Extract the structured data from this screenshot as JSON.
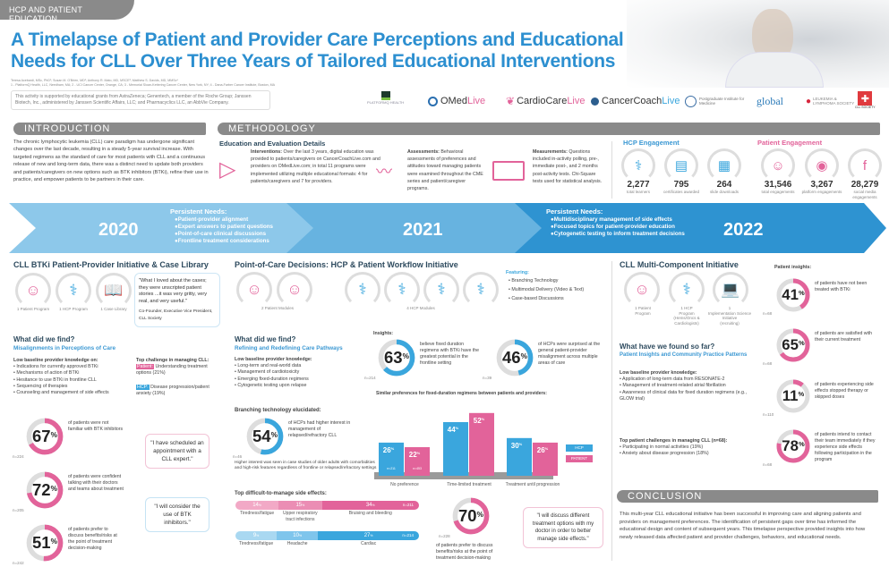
{
  "header": {
    "tag": "HCP AND PATIENT EDUCATION",
    "title": "A Timelapse of Patient and Provider Care Perceptions and Educational Needs for CLL Over Three Years of Tailored Educational Interventions",
    "authors": "Teresa Acebardi, MSc, PhD¹; Susan M. O'Brien, MD²; Anthony R. Mato, MD, MSCE³; Matthew S. Davids, MD, MMSc⁴",
    "affiliations": "1 - PlatformQ Health, LLC, Needham, MA; 2 - UCI Cancer Center, Orange, CA; 3 - Memorial Sloan-Kettering Cancer Center, New York, NY; 4 - Dana-Farber Cancer Institute, Boston, MA",
    "support": "This activity is supported by educational grants from AstraZeneca; Genentech, a member of the Roche Group; Janssen Biotech, Inc., administered by Janssen Scientific Affairs, LLC; and Pharmacyclics LLC, an AbbVie Company."
  },
  "logos": {
    "platformq": "PLATFORMQ HEALTH",
    "omed_a": "OMed",
    "omed_b": "Live",
    "cardio_a": "CardioCare",
    "cardio_b": "Live",
    "coach_a": "CancerCoach",
    "coach_b": "Live",
    "pim": "Postgraduate Institute for Medicine",
    "global": "global",
    "lls": "LEUKEMIA & LYMPHOMA SOCIETY",
    "cll": "CLL SOCIETY"
  },
  "colors": {
    "pink": "#e2639a",
    "blue": "#3aa6dd",
    "title_blue": "#2c8fd0",
    "section_gray": "#8a8a8a"
  },
  "intro": {
    "heading": "INTRODUCTION",
    "text": "The chronic lymphocytic leukemia (CLL) care paradigm has undergone significant changes over the last decade, resulting in a steady 5-year survival increase. With targeted regimens as the standard of care for most patients with CLL and a continuous release of new and long-term data, there was a distinct need to update both providers and patients/caregivers on new options such as BTK inhibitors (BTKi), refine their use in practice, and empower patients to be partners in their care."
  },
  "methodology": {
    "heading": "METHODOLOGY",
    "subheading": "Education and Evaluation Details",
    "interventions_label": "Interventions:",
    "interventions": " Over the last 3 years, digital education was provided to patients/caregivers on CancerCoachLive.com and providers on OMedLive.com; in total 11 programs were implemented utilizing multiple educational formats: 4 for patients/caregivers and 7 for providers.",
    "assessments_label": "Assessments:",
    "assessments": " Behavioral assessments of preferences and attitudes toward managing patients were examined throughout the CME series and patient/caregiver programs.",
    "measurements_label": "Measurements:",
    "measurements": " Questions included in-activity polling, pre-, immediate post-, and 2 months post-activity tests. Chi-Square tests used for statistical analysis."
  },
  "engagement": {
    "hcp_heading": "HCP Engagement",
    "patient_heading": "Patient Engagement",
    "hcp": [
      {
        "value": "2,277",
        "label": "total learners",
        "icon": "doctor-icon"
      },
      {
        "value": "795",
        "label": "certificates awarded",
        "icon": "certificate-icon"
      },
      {
        "value": "264",
        "label": "slide downloads",
        "icon": "presentation-icon"
      }
    ],
    "patient": [
      {
        "value": "31,546",
        "label": "total engagements",
        "icon": "person-icon"
      },
      {
        "value": "3,267",
        "label": "platform engagements",
        "icon": "megaphone-icon"
      },
      {
        "value": "28,279",
        "label": "social media engagements",
        "icon": "facebook-laptop-icon"
      }
    ]
  },
  "timeline": {
    "y2020": "2020",
    "y2021": "2021",
    "y2022": "2022",
    "needs_2020_title": "Persistent Needs:",
    "needs_2020": [
      "●Patient-provider alignment",
      "●Expert answers to patient questions",
      "●Point-of-care clinical discussions",
      "●Frontline treatment considerations"
    ],
    "needs_2022_title": "Persistent Needs:",
    "needs_2022": [
      "●Multidisciplinary management of side effects",
      "●Focused topics for patient-provider education",
      "●Cytogenetic testing to inform treatment decisions"
    ]
  },
  "s2020": {
    "title": "CLL BTKi Patient-Provider Initiative & Case Library",
    "programs": [
      "1 Patient Program",
      "1 HCP Program",
      "1 Case Library"
    ],
    "quote": "\"What I loved about the cases; they were unscripted patient stories ...it was very gritty, very real, and very useful.\"",
    "quote_attr": "Co-Founder, Executive Vice President, CLL Society",
    "find": "What did we find?",
    "find_sub": "Misalignments in Perceptions of Care",
    "low_title": "Low baseline provider knowledge on:",
    "low": [
      "Indications for currently approved BTKi",
      "Mechanisms of action of BTKi",
      "Hesitance to use BTKi in frontline CLL",
      "Sequencing of therapies",
      "Counseling and management of side effects"
    ],
    "challenge_title": "Top challenge in managing CLL:",
    "patient_badge": "Patient:",
    "patient_challenge": " Understanding treatment options (21%)",
    "hcp_badge": "HCP:",
    "hcp_challenge": " Disease progression/patient anxiety (19%)",
    "stats": [
      {
        "value": 67,
        "text": "of patients were not familiar with BTK inhibitors",
        "n": "n=224"
      },
      {
        "value": 72,
        "text": "of patients were confident talking with their doctors and teams about treatment",
        "n": "n=205"
      },
      {
        "value": 51,
        "text": "of patients prefer to discuss benefits/risks at the point of treatment decision-making",
        "n": "n=242"
      }
    ],
    "quote2": "\"I have scheduled an appointment with a CLL expert.\"",
    "quote3": "\"I will consider the use of BTK inhibitors.\""
  },
  "s2021": {
    "title": "Point-of-Care Decisions: HCP & Patient Workflow Initiative",
    "patient_modules": "2 Patient Modules",
    "hcp_modules": "4 HCP Modules",
    "featuring_title": "Featuring:",
    "featuring": [
      "Branching Technology",
      "Multimodal Delivery (Video & Text)",
      "Case-based Discussions"
    ],
    "find": "What did we find?",
    "find_sub": "Refining and Redefining Care Pathways",
    "low_title": "Low baseline provider knowledge:",
    "low": [
      "Long-term and real-world data",
      "Management of cardiotoxicity",
      "Emerging fixed-duration regimens",
      "Cytogenetic testing upon relapse"
    ],
    "insights_title": "Insights:",
    "insights": [
      {
        "value": 63,
        "text": "believe fixed duration regimens with BTKi have the greatest potential in the frontline setting",
        "n": "n=214"
      },
      {
        "value": 46,
        "text": "of HCPs were surprised at the general patient-provider misalignment across multiple areas of care",
        "n": "n=39"
      }
    ],
    "branching_title": "Branching technology elucidated:",
    "branching": {
      "value": 54,
      "text": "of HCPs had higher interest in management of relapsed/refractory CLL",
      "n": "n=46"
    },
    "branching_note": "Higher interest was seen in case studies of older adults with comorbidities and high-risk features regardless of frontline or relapsed/refractory settings",
    "side_title": "Top difficult-to-manage side effects:",
    "side_patient": {
      "n": "n=211",
      "items": [
        {
          "label": "Tiredness/fatigue",
          "value": 14
        },
        {
          "label": "Upper respiratory tract infections",
          "value": 15
        },
        {
          "label": "Bruising and bleeding",
          "value": 34
        }
      ]
    },
    "side_hcp": {
      "n": "n=214",
      "items": [
        {
          "label": "Tiredness/fatigue",
          "value": 9
        },
        {
          "label": "Headache",
          "value": 10
        },
        {
          "label": "Cardiac",
          "value": 27
        }
      ]
    },
    "pct": "%",
    "pref": {
      "value": 70,
      "text": "of patients prefer to discuss benefits/risks at the point of treatment decision-making",
      "n": "n=228"
    },
    "quote": "\"I will discuss different treatment options with my doctor in order to better manage side effects.\""
  },
  "chart_data": {
    "type": "bar",
    "title": "Similar preferences for fixed-duration regimens between patients and providers:",
    "categories": [
      "No preference",
      "Time-limited treatment",
      "Treatment until progression"
    ],
    "series": [
      {
        "name": "HCP",
        "values": [
          26,
          44,
          30
        ],
        "color": "#3aa6dd",
        "n": "n=211"
      },
      {
        "name": "PATIENT",
        "values": [
          22,
          52,
          26
        ],
        "color": "#e2639a",
        "n": "n=453"
      }
    ],
    "unit": "%",
    "ylim": [
      0,
      55
    ],
    "legend": "right",
    "grid": false
  },
  "s2022": {
    "title": "CLL Multi-Component Initiative",
    "programs": [
      {
        "line1": "1 Patient",
        "line2": "Program",
        "line3": ""
      },
      {
        "line1": "1 HCP",
        "line2": "Program",
        "line3": "(Hems/Oncs & Cardiologists)"
      },
      {
        "line1": "1",
        "line2": "Implementation Science Initiative",
        "line3": "(recruiting)"
      }
    ],
    "find": "What have we found so far?",
    "find_sub": "Patient Insights and Community Practice Patterns",
    "low_title": "Low baseline provider knowledge:",
    "low": [
      "Application of long-term data from RESONATE-2",
      "Management of treatment-related atrial fibrillation",
      "Awareness of clinical data for fixed duration regimens (e.g., GLOW trial)"
    ],
    "chal_title": "Top patient challenges in managing CLL (n=68):",
    "chal": [
      "Participating in normal activities (19%)",
      "Anxiety about disease progression (18%)"
    ],
    "insights_title": "Patient insights:",
    "insights": [
      {
        "value": 41,
        "text": "of patients have not been treated with BTKi",
        "n": "n=68"
      },
      {
        "value": 65,
        "text": "of patients are satisfied with their current treatment",
        "n": "n=68"
      },
      {
        "value": 11,
        "text": "of patients experiencing side effects stopped therapy or skipped doses",
        "n": "n=110"
      },
      {
        "value": 78,
        "text": "of patients intend to contact their team immediately if they experience side effects following participation in the program",
        "n": "n=68"
      }
    ]
  },
  "conclusion": {
    "heading": "CONCLUSION",
    "text": "This multi-year CLL educational initiative has been successful in improving care and aligning patients and providers on management preferences. The identification of persistent gaps over time has informed the educational design and content of subsequent years. This timelapse perspective provided insights into how newly released data affected patient and provider challenges, behaviors, and educational needs."
  }
}
